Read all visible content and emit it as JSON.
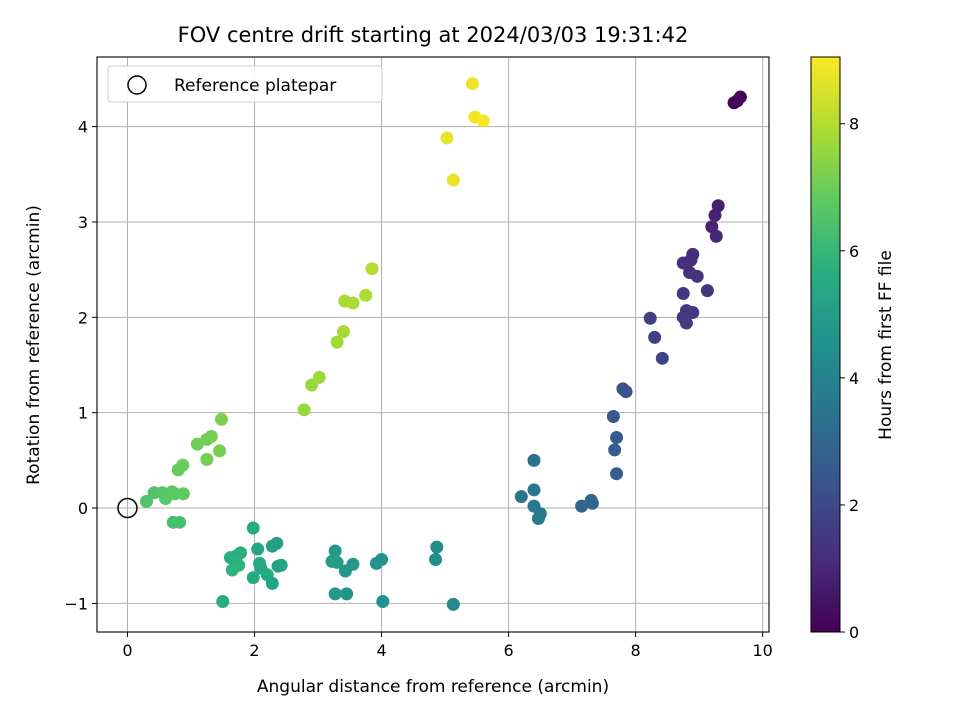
{
  "chart_data": {
    "type": "scatter",
    "title": "FOV centre drift starting at 2024/03/03 19:31:42",
    "xlabel": "Angular distance from reference (arcmin)",
    "ylabel": "Rotation from reference (arcmin)",
    "xlim": [
      -0.48,
      10.1
    ],
    "ylim": [
      -1.3,
      4.73
    ],
    "xticks": [
      0,
      2,
      4,
      6,
      8,
      10
    ],
    "yticks": [
      -1,
      0,
      1,
      2,
      3,
      4
    ],
    "grid": true,
    "legend": {
      "placement": "upper-left",
      "entries": [
        "Reference platepar"
      ]
    },
    "reference_point": {
      "label": "Reference platepar",
      "x": 0,
      "y": 0
    },
    "colorbar": {
      "label": "Hours from first FF file",
      "colormap": "viridis",
      "range": [
        0,
        9.05
      ],
      "ticks": [
        0,
        2,
        4,
        6,
        8
      ]
    },
    "points": [
      {
        "x": 9.55,
        "y": 4.25,
        "t": 0.05
      },
      {
        "x": 9.6,
        "y": 4.27,
        "t": 0.1
      },
      {
        "x": 9.65,
        "y": 4.31,
        "t": 0.15
      },
      {
        "x": 9.3,
        "y": 3.17,
        "t": 0.8
      },
      {
        "x": 9.25,
        "y": 3.07,
        "t": 0.85
      },
      {
        "x": 9.2,
        "y": 2.95,
        "t": 0.9
      },
      {
        "x": 9.27,
        "y": 2.85,
        "t": 0.95
      },
      {
        "x": 8.9,
        "y": 2.66,
        "t": 1.1
      },
      {
        "x": 8.87,
        "y": 2.6,
        "t": 1.15
      },
      {
        "x": 8.75,
        "y": 2.57,
        "t": 1.2
      },
      {
        "x": 8.85,
        "y": 2.47,
        "t": 1.25
      },
      {
        "x": 8.97,
        "y": 2.43,
        "t": 1.3
      },
      {
        "x": 9.13,
        "y": 2.28,
        "t": 1.35
      },
      {
        "x": 8.75,
        "y": 2.25,
        "t": 1.4
      },
      {
        "x": 8.8,
        "y": 2.07,
        "t": 1.45
      },
      {
        "x": 8.9,
        "y": 2.05,
        "t": 1.5
      },
      {
        "x": 8.75,
        "y": 2.0,
        "t": 1.55
      },
      {
        "x": 8.8,
        "y": 1.94,
        "t": 1.6
      },
      {
        "x": 8.23,
        "y": 1.99,
        "t": 1.7
      },
      {
        "x": 8.3,
        "y": 1.79,
        "t": 1.75
      },
      {
        "x": 8.42,
        "y": 1.57,
        "t": 1.8
      },
      {
        "x": 7.8,
        "y": 1.25,
        "t": 2.25
      },
      {
        "x": 7.85,
        "y": 1.22,
        "t": 2.3
      },
      {
        "x": 7.65,
        "y": 0.96,
        "t": 2.45
      },
      {
        "x": 7.7,
        "y": 0.74,
        "t": 2.55
      },
      {
        "x": 7.67,
        "y": 0.61,
        "t": 2.6
      },
      {
        "x": 7.7,
        "y": 0.36,
        "t": 2.65
      },
      {
        "x": 7.3,
        "y": 0.08,
        "t": 2.9
      },
      {
        "x": 7.32,
        "y": 0.05,
        "t": 2.95
      },
      {
        "x": 7.15,
        "y": 0.02,
        "t": 3.0
      },
      {
        "x": 6.4,
        "y": 0.5,
        "t": 3.4
      },
      {
        "x": 6.4,
        "y": 0.19,
        "t": 3.5
      },
      {
        "x": 6.2,
        "y": 0.12,
        "t": 3.55
      },
      {
        "x": 6.4,
        "y": 0.02,
        "t": 3.6
      },
      {
        "x": 6.5,
        "y": -0.06,
        "t": 3.65
      },
      {
        "x": 6.47,
        "y": -0.11,
        "t": 3.7
      },
      {
        "x": 4.87,
        "y": -0.41,
        "t": 4.4
      },
      {
        "x": 4.85,
        "y": -0.54,
        "t": 4.45
      },
      {
        "x": 5.13,
        "y": -1.01,
        "t": 4.3
      },
      {
        "x": 4.0,
        "y": -0.54,
        "t": 4.6
      },
      {
        "x": 3.92,
        "y": -0.58,
        "t": 4.65
      },
      {
        "x": 4.02,
        "y": -0.98,
        "t": 4.55
      },
      {
        "x": 3.55,
        "y": -0.59,
        "t": 4.75
      },
      {
        "x": 3.43,
        "y": -0.66,
        "t": 4.8
      },
      {
        "x": 3.45,
        "y": -0.9,
        "t": 4.7
      },
      {
        "x": 3.27,
        "y": -0.45,
        "t": 4.85
      },
      {
        "x": 3.22,
        "y": -0.56,
        "t": 4.9
      },
      {
        "x": 3.3,
        "y": -0.57,
        "t": 4.95
      },
      {
        "x": 3.27,
        "y": -0.9,
        "t": 4.88
      },
      {
        "x": 2.35,
        "y": -0.37,
        "t": 5.05
      },
      {
        "x": 2.28,
        "y": -0.4,
        "t": 5.1
      },
      {
        "x": 2.42,
        "y": -0.6,
        "t": 5.15
      },
      {
        "x": 2.37,
        "y": -0.61,
        "t": 5.2
      },
      {
        "x": 2.28,
        "y": -0.79,
        "t": 5.25
      },
      {
        "x": 2.05,
        "y": -0.43,
        "t": 5.3
      },
      {
        "x": 2.08,
        "y": -0.58,
        "t": 5.35
      },
      {
        "x": 2.1,
        "y": -0.63,
        "t": 5.4
      },
      {
        "x": 2.2,
        "y": -0.7,
        "t": 5.45
      },
      {
        "x": 1.98,
        "y": -0.73,
        "t": 5.5
      },
      {
        "x": 1.98,
        "y": -0.21,
        "t": 5.55
      },
      {
        "x": 1.78,
        "y": -0.47,
        "t": 5.6
      },
      {
        "x": 1.72,
        "y": -0.5,
        "t": 5.65
      },
      {
        "x": 1.62,
        "y": -0.52,
        "t": 5.7
      },
      {
        "x": 1.7,
        "y": -0.58,
        "t": 5.75
      },
      {
        "x": 1.75,
        "y": -0.6,
        "t": 5.8
      },
      {
        "x": 1.65,
        "y": -0.65,
        "t": 5.85
      },
      {
        "x": 1.5,
        "y": -0.98,
        "t": 5.6
      },
      {
        "x": 0.72,
        "y": -0.15,
        "t": 6.3
      },
      {
        "x": 0.82,
        "y": -0.15,
        "t": 6.35
      },
      {
        "x": 0.3,
        "y": 0.07,
        "t": 6.5
      },
      {
        "x": 0.42,
        "y": 0.16,
        "t": 6.55
      },
      {
        "x": 0.55,
        "y": 0.16,
        "t": 6.6
      },
      {
        "x": 0.6,
        "y": 0.1,
        "t": 6.65
      },
      {
        "x": 0.7,
        "y": 0.17,
        "t": 6.7
      },
      {
        "x": 0.75,
        "y": 0.15,
        "t": 6.75
      },
      {
        "x": 0.88,
        "y": 0.15,
        "t": 6.8
      },
      {
        "x": 0.8,
        "y": 0.4,
        "t": 6.9
      },
      {
        "x": 0.87,
        "y": 0.45,
        "t": 6.95
      },
      {
        "x": 1.1,
        "y": 0.67,
        "t": 7.0
      },
      {
        "x": 1.25,
        "y": 0.72,
        "t": 7.05
      },
      {
        "x": 1.32,
        "y": 0.75,
        "t": 7.08
      },
      {
        "x": 1.25,
        "y": 0.51,
        "t": 7.1
      },
      {
        "x": 1.45,
        "y": 0.6,
        "t": 7.15
      },
      {
        "x": 1.48,
        "y": 0.93,
        "t": 7.2
      },
      {
        "x": 2.78,
        "y": 1.03,
        "t": 7.6
      },
      {
        "x": 2.9,
        "y": 1.29,
        "t": 7.65
      },
      {
        "x": 3.02,
        "y": 1.37,
        "t": 7.7
      },
      {
        "x": 3.3,
        "y": 1.74,
        "t": 7.75
      },
      {
        "x": 3.4,
        "y": 1.85,
        "t": 7.8
      },
      {
        "x": 3.42,
        "y": 2.17,
        "t": 7.85
      },
      {
        "x": 3.55,
        "y": 2.15,
        "t": 7.9
      },
      {
        "x": 3.75,
        "y": 2.23,
        "t": 7.95
      },
      {
        "x": 3.85,
        "y": 2.51,
        "t": 8.0
      },
      {
        "x": 5.03,
        "y": 3.88,
        "t": 8.7
      },
      {
        "x": 5.13,
        "y": 3.44,
        "t": 8.75
      },
      {
        "x": 5.43,
        "y": 4.45,
        "t": 8.85
      },
      {
        "x": 5.47,
        "y": 4.1,
        "t": 8.9
      },
      {
        "x": 5.6,
        "y": 4.06,
        "t": 8.95
      }
    ]
  }
}
